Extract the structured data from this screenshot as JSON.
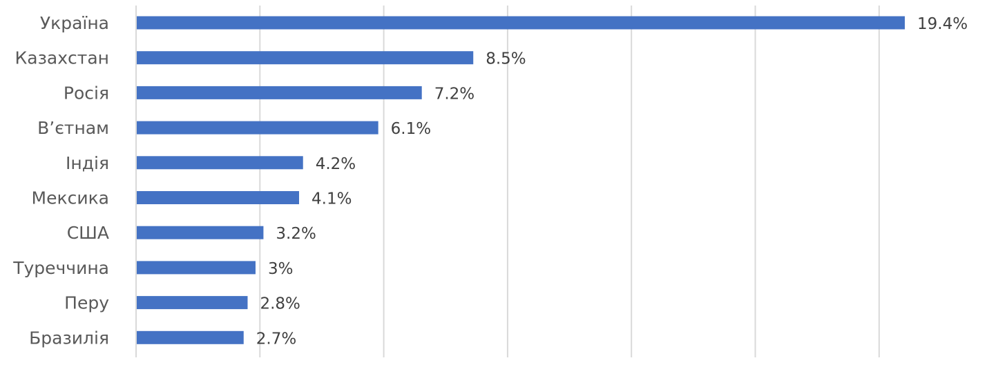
{
  "chart_data": {
    "type": "bar",
    "orientation": "horizontal",
    "categories": [
      "Україна",
      "Казахстан",
      "Росія",
      "В’єтнам",
      "Індія",
      "Мексика",
      "США",
      "Туреччина",
      "Перу",
      "Бразилія"
    ],
    "values": [
      19.4,
      8.5,
      7.2,
      6.1,
      4.2,
      4.1,
      3.2,
      3,
      2.8,
      2.7
    ],
    "value_labels": [
      "19.4%",
      "8.5%",
      "7.2%",
      "6.1%",
      "4.2%",
      "4.1%",
      "3.2%",
      "3%",
      "2.8%",
      "2.7%"
    ],
    "title": "",
    "xlabel": "",
    "ylabel": "",
    "xlim": [
      0,
      21
    ],
    "grid": true,
    "legend": "none",
    "bar_color": "#4472c4"
  }
}
